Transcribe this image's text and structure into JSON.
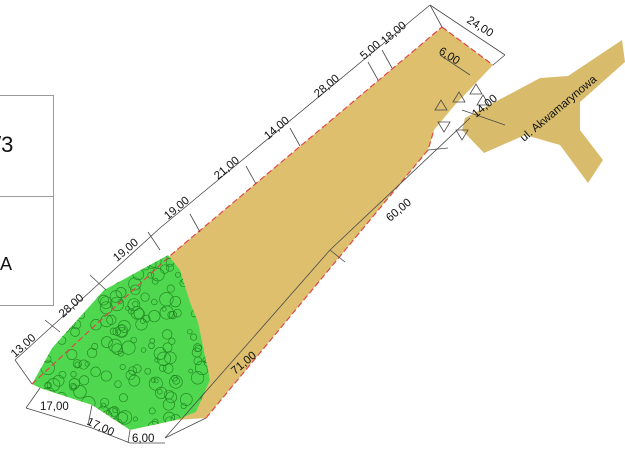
{
  "colors": {
    "parcel_fill": "#DDBF6E",
    "road_fill": "#D9BC6B",
    "vegetation_fill": "#4FD84F",
    "vegetation_stroke": "#238A23",
    "boundary_line": "#E04848",
    "dimension_line": "#4A4A4A"
  },
  "legend": {
    "top_text": "/3",
    "bottom_text": "/A"
  },
  "street": {
    "name": "ul. Akwamarynowa"
  },
  "dimensions": {
    "north_side": [
      "13,00",
      "28,00",
      "19,00",
      "19,00",
      "21,00",
      "14,00",
      "28,00",
      "5,00",
      "18,00"
    ],
    "top_end": [
      "24,00",
      "6,00",
      "14,00"
    ],
    "south_side": [
      "60,00",
      "71,00"
    ],
    "bottom_end": [
      "17,00",
      "17,00",
      "6,00"
    ]
  }
}
